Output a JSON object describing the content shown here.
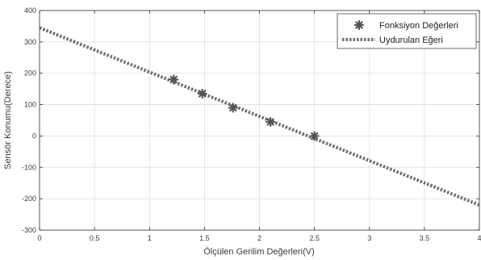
{
  "chart_data": {
    "type": "scatter",
    "xlabel": "Ölçülen Gerilim Değerleri(V)",
    "ylabel": "Sensör Konumu(Derece)",
    "xlim": [
      0,
      4
    ],
    "ylim": [
      -300,
      400
    ],
    "x_ticks": [
      "0",
      "0.5",
      "1",
      "1.5",
      "2",
      "2.5",
      "3",
      "3.5",
      "4"
    ],
    "y_ticks": [
      "400",
      "300",
      "200",
      "100",
      "0",
      "-100",
      "-200",
      "-300"
    ],
    "grid": true,
    "legend_position": "top-right",
    "series": [
      {
        "name": "Fonksiyon Değerleri",
        "style": "markers",
        "marker": "asterisk",
        "color": "#555555",
        "points": [
          [
            1.22,
            180
          ],
          [
            1.48,
            135
          ],
          [
            1.76,
            90
          ],
          [
            2.1,
            45
          ],
          [
            2.5,
            0
          ]
        ]
      },
      {
        "name": "Uydurulan Eğeri",
        "style": "dotted-line",
        "color": "#6e6e6e",
        "points": [
          [
            0,
            345
          ],
          [
            4,
            -220
          ]
        ]
      }
    ]
  }
}
